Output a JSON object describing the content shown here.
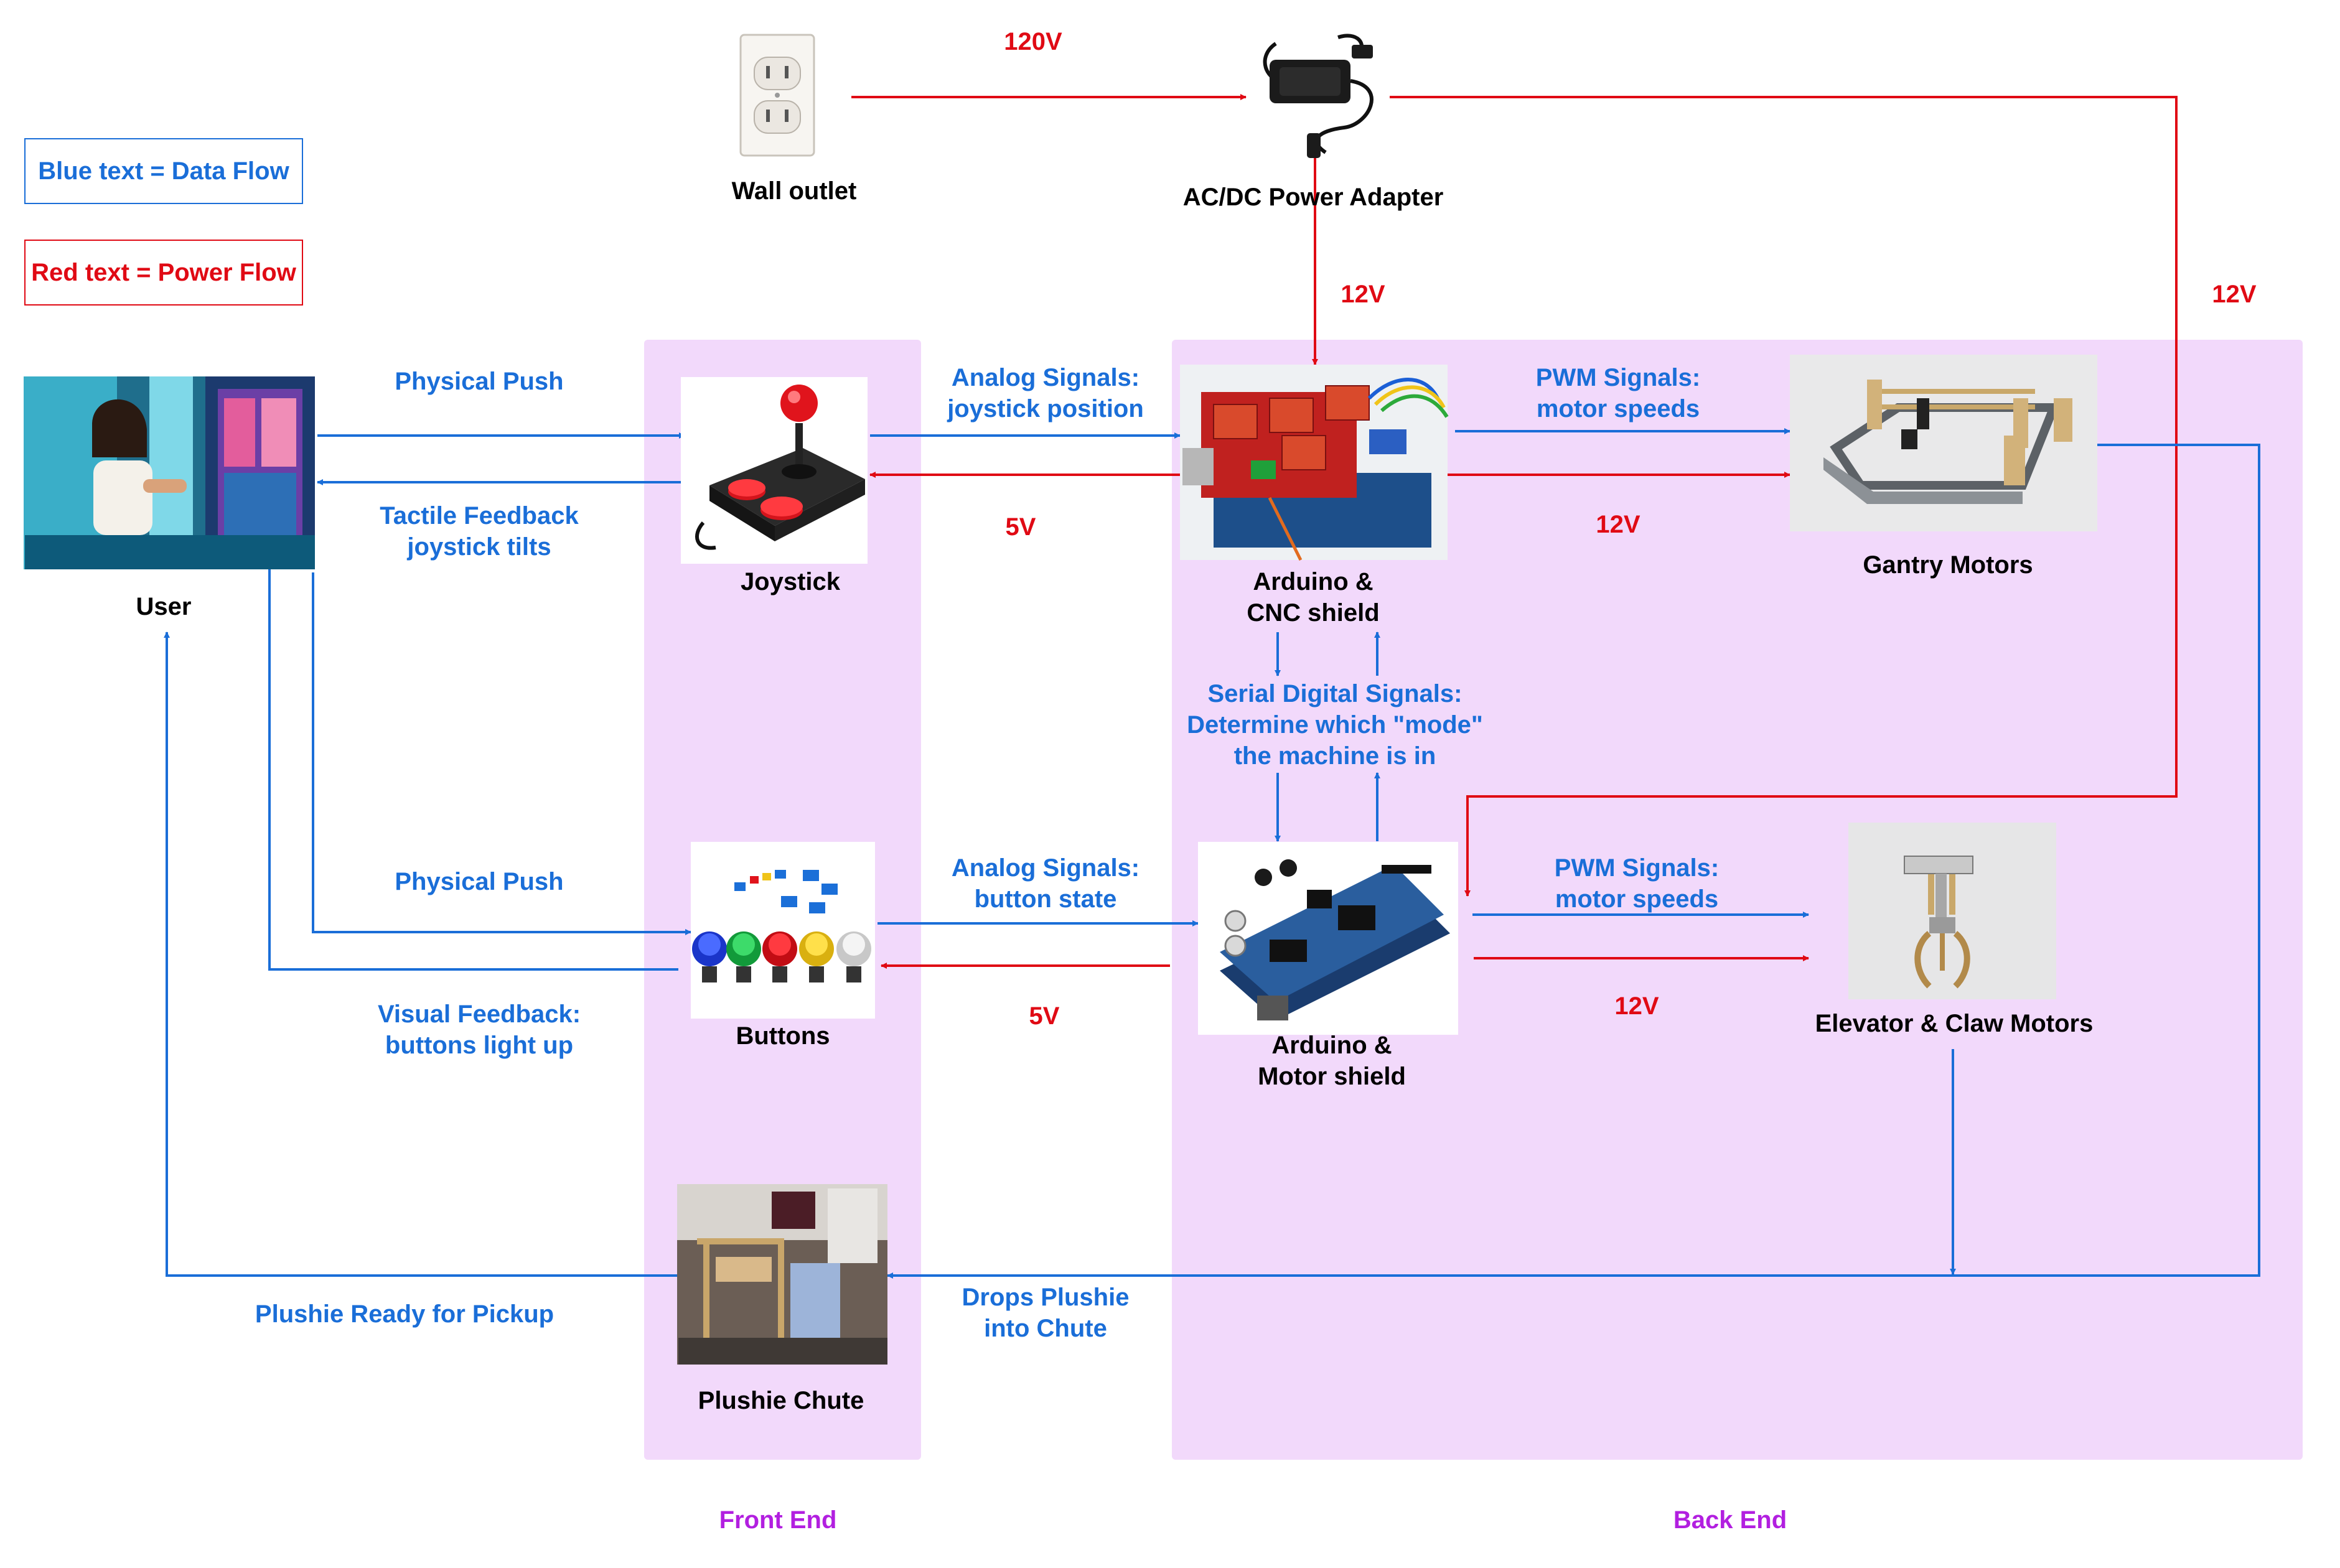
{
  "legend": {
    "blue": "Blue text = Data Flow",
    "red": "Red text = Power Flow"
  },
  "nodes": {
    "wall_outlet": "Wall outlet",
    "power_adapter": "AC/DC Power Adapter",
    "user": "User",
    "joystick": "Joystick",
    "cnc_arduino": [
      "Arduino &",
      "CNC shield"
    ],
    "gantry": "Gantry Motors",
    "buttons": "Buttons",
    "motor_arduino": [
      "Arduino &",
      "Motor shield"
    ],
    "claw": "Elevator & Claw Motors",
    "chute": "Plushie Chute"
  },
  "power_labels": {
    "outlet_adapter": "120V",
    "adapter_cnc": "12V",
    "adapter_right": "12V",
    "cnc_joystick": "5V",
    "cnc_gantry": "12V",
    "motor_buttons": "5V",
    "motor_claw": "12V"
  },
  "data_labels": {
    "push_joystick": "Physical Push",
    "tactile_feedback": [
      "Tactile Feedback",
      "joystick tilts"
    ],
    "joystick_signals": [
      "Analog Signals:",
      "joystick position"
    ],
    "cnc_pwm": [
      "PWM Signals:",
      "motor speeds"
    ],
    "serial": [
      "Serial Digital Signals:",
      "Determine which \"mode\"",
      "the machine is in"
    ],
    "push_buttons": "Physical Push",
    "button_signals": [
      "Analog Signals:",
      "button state"
    ],
    "motor_pwm": [
      "PWM Signals:",
      "motor speeds"
    ],
    "visual_feedback": [
      "Visual Feedback:",
      "buttons light up"
    ],
    "drops_plushie": [
      "Drops Plushie",
      "into Chute"
    ],
    "plushie_ready": "Plushie Ready for Pickup"
  },
  "sections": {
    "front": "Front End",
    "back": "Back End"
  },
  "colors": {
    "data": "#1a6ed8",
    "power": "#e00a14",
    "panel": "#f2d9fb",
    "section": "#b21fe0"
  },
  "icons": [
    "wall-outlet-icon",
    "power-adapter-icon",
    "user-photo",
    "joystick-icon",
    "cnc-shield-photo",
    "gantry-icon",
    "arcade-buttons-icon",
    "motor-shield-photo",
    "claw-icon",
    "chute-photo"
  ]
}
